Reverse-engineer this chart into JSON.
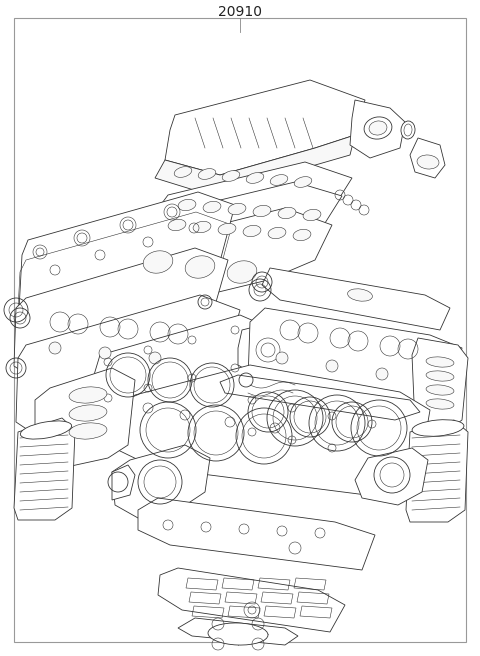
{
  "title": "20910",
  "background_color": "#ffffff",
  "line_color": "#333333",
  "fig_width": 4.8,
  "fig_height": 6.56,
  "dpi": 100,
  "title_fontsize": 10,
  "border_color": "#999999"
}
